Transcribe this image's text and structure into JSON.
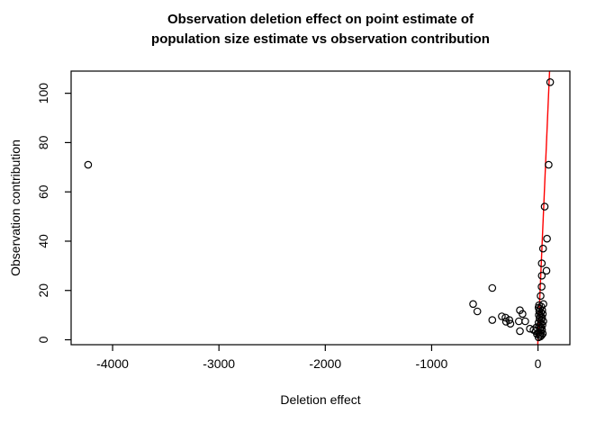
{
  "title": {
    "line1": "Observation deletion effect on point estimate of",
    "line2": "population size estimate vs observation contribution"
  },
  "colors": {
    "background": "#ffffff",
    "axis": "#000000",
    "marker": "#000000",
    "fit_line": "#ff0000"
  },
  "chart_data": {
    "type": "scatter",
    "title": "Observation deletion effect on point estimate of population size estimate vs observation contribution",
    "xlabel": "Deletion effect",
    "ylabel": "Observation contribution",
    "x_ticks": [
      "-4000",
      "-3000",
      "-2000",
      "-1000",
      "0"
    ],
    "x_tick_values": [
      -4000,
      -3000,
      -2000,
      -1000,
      0
    ],
    "y_ticks": [
      "0",
      "20",
      "40",
      "60",
      "80",
      "100"
    ],
    "y_tick_values": [
      0,
      20,
      40,
      60,
      80,
      100
    ],
    "xlim": [
      -4390,
      300
    ],
    "ylim": [
      -2,
      109
    ],
    "grid": false,
    "legend": null,
    "marker": "open-circle",
    "line": {
      "kind": "abline",
      "intercept": 0,
      "slope": 1,
      "color": "#ff0000"
    },
    "points": [
      [
        -4230,
        71
      ],
      [
        -610,
        14.5
      ],
      [
        -570,
        11.5
      ],
      [
        -430,
        21
      ],
      [
        -430,
        8
      ],
      [
        -340,
        9.5
      ],
      [
        -305,
        9
      ],
      [
        -300,
        7.3
      ],
      [
        -270,
        8
      ],
      [
        -260,
        6.5
      ],
      [
        -180,
        7.5
      ],
      [
        -170,
        12
      ],
      [
        -170,
        3.5
      ],
      [
        -145,
        10.5
      ],
      [
        -120,
        7.5
      ],
      [
        -76,
        4.5
      ],
      [
        -42,
        4
      ],
      [
        115,
        104.5
      ],
      [
        100,
        71
      ],
      [
        63,
        54
      ],
      [
        85,
        41
      ],
      [
        48,
        37
      ],
      [
        36,
        31
      ],
      [
        80,
        28
      ],
      [
        36,
        26
      ],
      [
        34,
        21.5
      ],
      [
        25,
        17.8
      ],
      [
        51,
        14.5
      ],
      [
        10,
        14
      ],
      [
        30,
        13.5
      ],
      [
        5,
        13
      ],
      [
        20,
        12.5
      ],
      [
        40,
        12
      ],
      [
        12,
        11.5
      ],
      [
        28,
        11
      ],
      [
        45,
        10.5
      ],
      [
        8,
        10
      ],
      [
        22,
        9.5
      ],
      [
        38,
        9
      ],
      [
        15,
        8.5
      ],
      [
        32,
        8
      ],
      [
        50,
        7.5
      ],
      [
        5,
        7
      ],
      [
        25,
        6.5
      ],
      [
        42,
        6
      ],
      [
        10,
        5.5
      ],
      [
        30,
        5
      ],
      [
        -15,
        5
      ],
      [
        18,
        4.5
      ],
      [
        38,
        4
      ],
      [
        -20,
        3.5
      ],
      [
        8,
        3
      ],
      [
        25,
        2.8
      ],
      [
        45,
        2.5
      ],
      [
        -10,
        2.3
      ],
      [
        15,
        2
      ],
      [
        33,
        1.8
      ],
      [
        22,
        1.3
      ],
      [
        5,
        1
      ]
    ]
  }
}
